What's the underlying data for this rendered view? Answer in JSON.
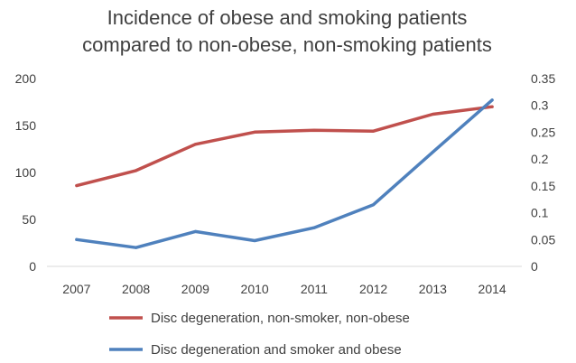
{
  "chart_data": {
    "type": "line",
    "title": [
      "Incidence of obese and smoking patients",
      "compared to non-obese, non-smoking patients"
    ],
    "xlabel": "",
    "ylabel": "",
    "categories": [
      "2007",
      "2008",
      "2009",
      "2010",
      "2011",
      "2012",
      "2013",
      "2014"
    ],
    "y_left": {
      "min": 0,
      "max": 200,
      "ticks": [
        "0",
        "50",
        "100",
        "150",
        "200"
      ]
    },
    "y_right": {
      "min": 0,
      "max": 0.35,
      "ticks": [
        "0",
        "0.05",
        "0.1",
        "0.15",
        "0.2",
        "0.25",
        "0.3",
        "0.35"
      ]
    },
    "grid": false,
    "legend_position": "bottom",
    "series": [
      {
        "name": "Disc degeneration, non-smoker, non-obese",
        "axis": "left",
        "color": "#c0504d",
        "values": [
          86,
          102,
          130,
          143,
          145,
          144,
          162,
          170
        ]
      },
      {
        "name": "Disc degeneration and smoker and obese",
        "axis": "right",
        "color": "#4f81bd",
        "values": [
          0.05,
          0.035,
          0.065,
          0.048,
          0.072,
          0.115,
          0.213,
          0.31
        ]
      }
    ]
  }
}
